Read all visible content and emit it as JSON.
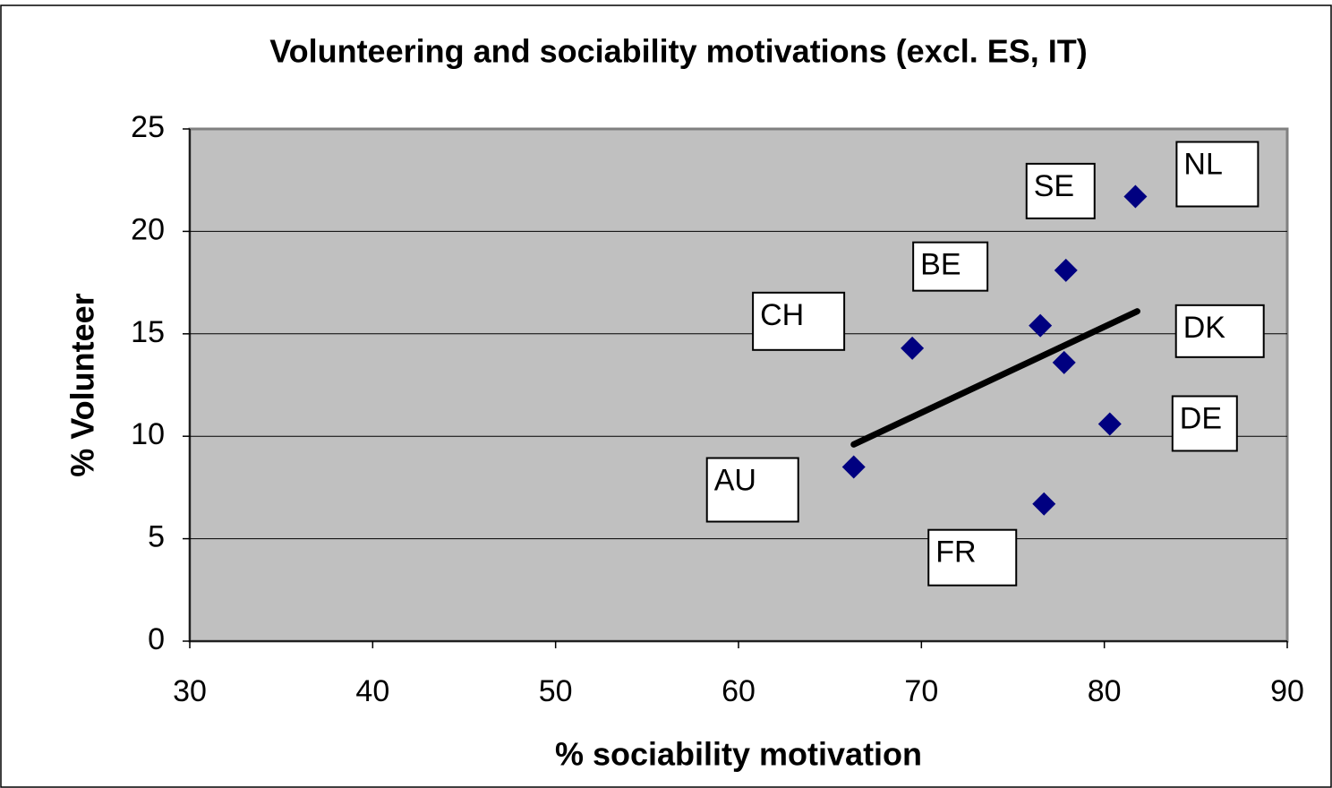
{
  "chart_data": {
    "type": "scatter",
    "title": "Volunteering and sociability motivations (excl. ES, IT)",
    "x_label": "% sociability motivation",
    "y_label": "% Volunteer",
    "labels": [
      "NL",
      "SE",
      "BE",
      "CH",
      "DK",
      "DE",
      "AU",
      "FR"
    ],
    "x": [
      81.7,
      77.9,
      76.5,
      69.5,
      77.8,
      80.3,
      66.3,
      76.7
    ],
    "values": [
      21.7,
      18.1,
      15.4,
      14.3,
      13.6,
      10.6,
      8.5,
      6.7
    ],
    "color": "#000080",
    "trendline": {
      "x": [
        66.3,
        81.8
      ],
      "y": [
        9.6,
        16.1
      ],
      "color": "#000000"
    },
    "xlim": [
      30,
      90
    ],
    "xticks": [
      30,
      40,
      50,
      60,
      70,
      80,
      90
    ],
    "ylim": [
      0,
      25
    ],
    "yticks": [
      0,
      5,
      10,
      15,
      20,
      25
    ],
    "grid": true
  }
}
